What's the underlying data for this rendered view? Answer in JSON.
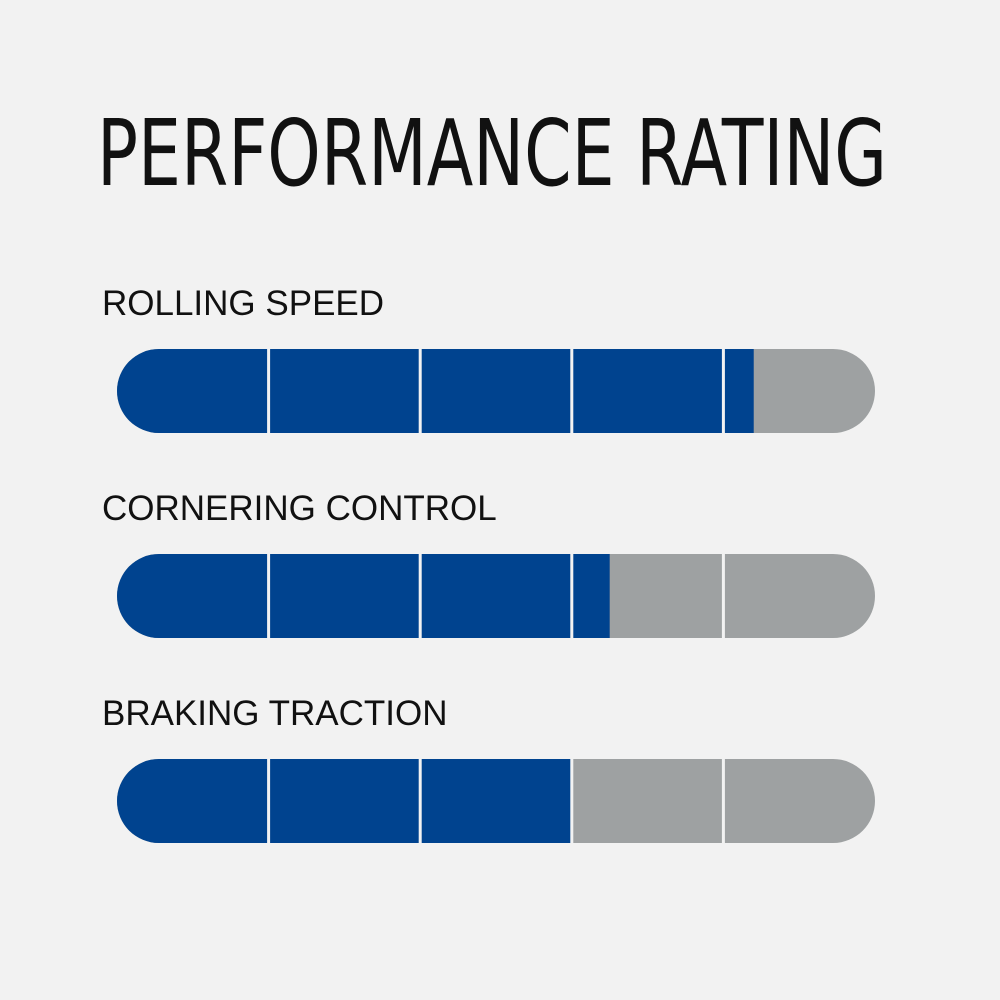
{
  "chart_data": {
    "type": "rating",
    "title": "PERFORMANCE RATING",
    "categories": [
      "ROLLING SPEED",
      "CORNERING CONTROL",
      "BRAKING TRACTION"
    ],
    "values": [
      4.2,
      3.25,
      3
    ],
    "xlim": [
      0,
      5
    ],
    "segments": 5,
    "color": "#00438f",
    "track_color": "#9ea1a2"
  }
}
